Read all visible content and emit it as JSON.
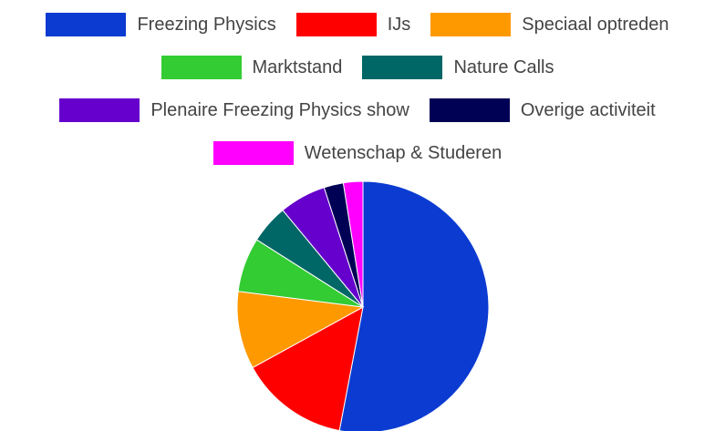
{
  "chart_data": {
    "type": "pie",
    "title": "",
    "legend_position": "top",
    "slices": [
      {
        "label": "Freezing Physics",
        "value": 53,
        "color": "#0b3bd1"
      },
      {
        "label": "IJs",
        "value": 14,
        "color": "#ff0000"
      },
      {
        "label": "Speciaal optreden",
        "value": 10,
        "color": "#ff9900"
      },
      {
        "label": "Marktstand",
        "value": 7,
        "color": "#33cc33"
      },
      {
        "label": "Nature Calls",
        "value": 5,
        "color": "#006666"
      },
      {
        "label": "Plenaire Freezing Physics show",
        "value": 6,
        "color": "#6600cc"
      },
      {
        "label": "Overige activiteit",
        "value": 2.5,
        "color": "#000055"
      },
      {
        "label": "Wetenschap & Studeren",
        "value": 2.5,
        "color": "#ff00ff"
      }
    ]
  }
}
